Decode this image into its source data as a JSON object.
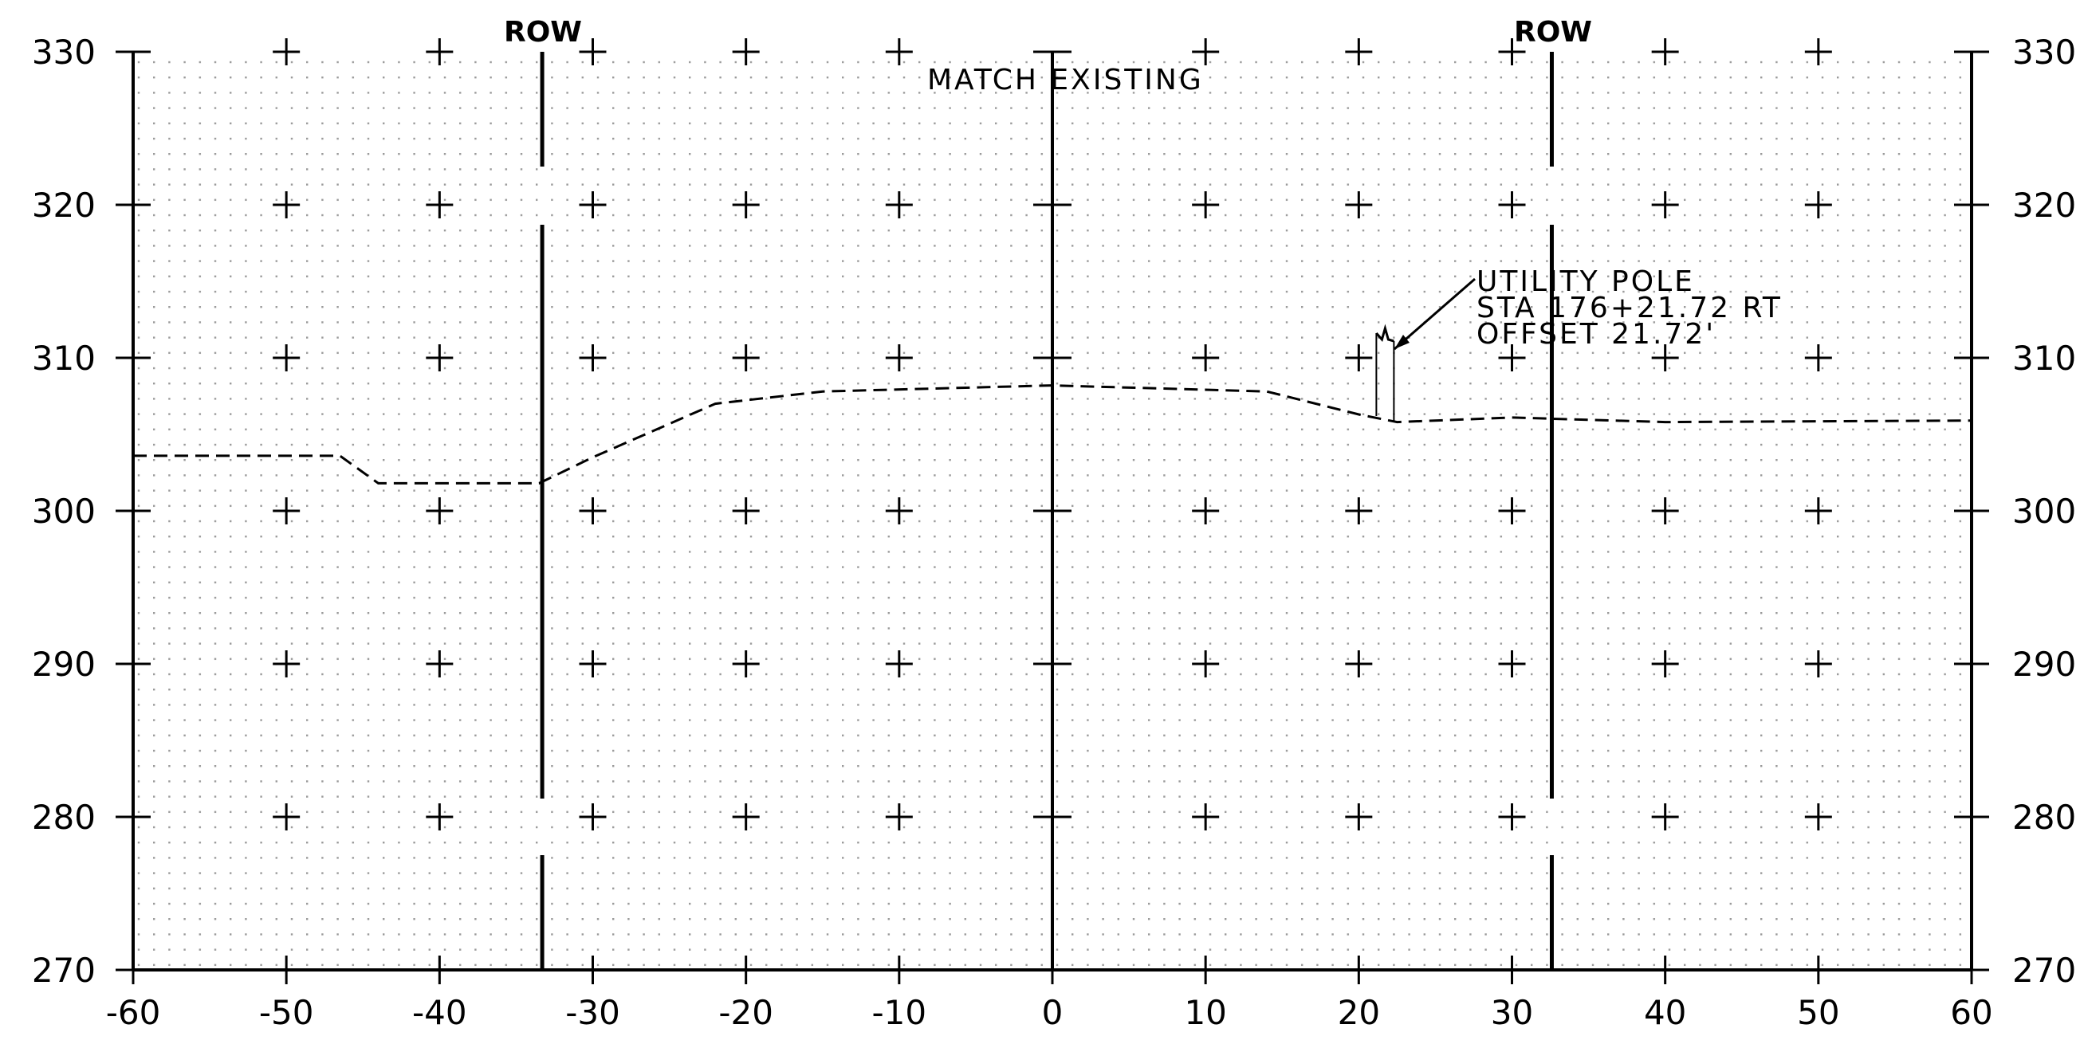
{
  "drawing": {
    "x_ticks": [
      "-60",
      "-50",
      "-40",
      "-30",
      "-20",
      "-10",
      "0",
      "10",
      "20",
      "30",
      "40",
      "50",
      "60"
    ],
    "y_ticks": [
      "330",
      "320",
      "310",
      "300",
      "290",
      "280",
      "270"
    ],
    "row_left_label": "ROW",
    "row_right_label": "ROW",
    "match_existing_label": "MATCH EXISTING",
    "utility_pole": {
      "line1": "UTILITY POLE",
      "line2": "STA 176+21.72 RT",
      "line3": "OFFSET 21.72'"
    }
  },
  "chart_data": {
    "type": "line",
    "title": "",
    "xlabel": "",
    "ylabel": "",
    "xlim": [
      -60,
      60
    ],
    "ylim": [
      270,
      330
    ],
    "grid": true,
    "row_offsets": [
      -33.3,
      32.6
    ],
    "utility_pole_offset": 21.72,
    "series": [
      {
        "style": "dashed",
        "x": [
          -60,
          -46.5,
          -44,
          -33.5,
          -30,
          -22,
          -15,
          0,
          14,
          20,
          22.5,
          30,
          40,
          60
        ],
        "y": [
          303.6,
          303.6,
          301.8,
          301.8,
          303.5,
          307.0,
          307.8,
          308.2,
          307.8,
          306.3,
          305.8,
          306.1,
          305.8,
          305.9
        ]
      }
    ]
  }
}
